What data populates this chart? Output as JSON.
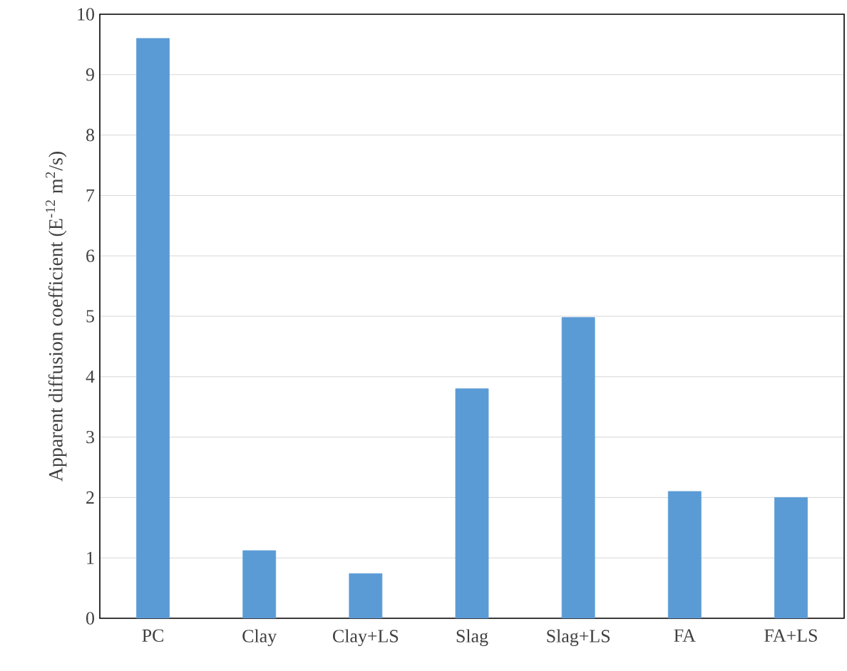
{
  "chart_data": {
    "type": "bar",
    "ylabel": "Apparent diffusion coefficient (E$^{-12}$ m$^{2}$/s)",
    "categories": [
      "PC",
      "Clay",
      "Clay+LS",
      "Slag",
      "Slag+LS",
      "FA",
      "FA+LS"
    ],
    "values": [
      9.6,
      1.12,
      0.74,
      3.8,
      4.98,
      2.1,
      2.0
    ],
    "color": "#5b9bd5",
    "ylim": [
      0,
      10
    ],
    "yticks": [
      0,
      1,
      2,
      3,
      4,
      5,
      6,
      7,
      8,
      9,
      10
    ],
    "grid": "y"
  }
}
